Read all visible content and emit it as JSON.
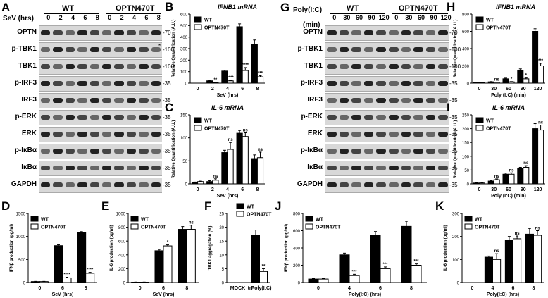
{
  "panels": {
    "A": {
      "label": "A",
      "time_label": "SeV (hrs)",
      "groups": [
        "WT",
        "OPTN470T"
      ],
      "timepoints": [
        "0",
        "2",
        "4",
        "6",
        "8",
        "0",
        "2",
        "4",
        "6",
        "8"
      ],
      "rows": [
        {
          "name": "OPTN",
          "kda": "-70"
        },
        {
          "name": "p-TBK1",
          "kda": "-100"
        },
        {
          "name": "TBK1",
          "kda": "-100"
        },
        {
          "name": "p-IRF3",
          "kda": "-35"
        },
        {
          "name": "IRF3",
          "kda": "-35"
        },
        {
          "name": "p-ERK",
          "kda": "-35"
        },
        {
          "name": "ERK",
          "kda": "-35"
        },
        {
          "name": "p-IκBα",
          "kda": "-35"
        },
        {
          "name": "IκBα",
          "kda": "-35"
        },
        {
          "name": "GAPDH",
          "kda": "-35"
        }
      ],
      "star": "*"
    },
    "G": {
      "label": "G",
      "time_label": "Poly(I:C)",
      "time_unit": "(min)",
      "groups": [
        "WT",
        "OPTN470T"
      ],
      "timepoints": [
        "0",
        "30",
        "60",
        "90",
        "120",
        "0",
        "30",
        "60",
        "90",
        "120"
      ],
      "rows": [
        {
          "name": "OPTN",
          "kda": "-70"
        },
        {
          "name": "p-TBK1",
          "kda": "-100"
        },
        {
          "name": "TBK1",
          "kda": "-100"
        },
        {
          "name": "p-IRF3",
          "kda": "-35"
        },
        {
          "name": "IRF3",
          "kda": "-35"
        },
        {
          "name": "p-ERK",
          "kda": "-35"
        },
        {
          "name": "ERK",
          "kda": "-35"
        },
        {
          "name": "p-IκBα",
          "kda": "-35"
        },
        {
          "name": "IκBα",
          "kda": "-35"
        },
        {
          "name": "GAPDH",
          "kda": "-35"
        }
      ]
    }
  },
  "legend": {
    "wt": "WT",
    "mut": "OPTN470T"
  },
  "chart_data": [
    {
      "id": "B",
      "type": "bar",
      "title": "IFNB1 mRNA",
      "ylabel": "Relative Quantification (A.U.)",
      "xlabel": "SeV (hrs)",
      "categories": [
        "0",
        "2",
        "4",
        "6",
        "8"
      ],
      "ylim": [
        0,
        600
      ],
      "yticks": [
        0,
        100,
        200,
        300,
        400,
        500,
        600
      ],
      "series": [
        {
          "name": "WT",
          "values": [
            0,
            20,
            105,
            490,
            335
          ],
          "err": [
            0,
            5,
            8,
            25,
            40
          ]
        },
        {
          "name": "OPTN470T",
          "values": [
            0,
            5,
            20,
            110,
            55
          ],
          "err": [
            0,
            2,
            4,
            25,
            10
          ]
        }
      ],
      "sig": [
        "",
        "**",
        "****",
        "****",
        "***"
      ]
    },
    {
      "id": "C",
      "type": "bar",
      "title": "IL-6 mRNA",
      "ylabel": "Relative Quantification (A.U.)",
      "xlabel": "SeV (hrs)",
      "categories": [
        "0",
        "2",
        "4",
        "6",
        "8"
      ],
      "ylim": [
        0,
        150
      ],
      "yticks": [
        0,
        50,
        100,
        150
      ],
      "series": [
        {
          "name": "WT",
          "values": [
            3,
            5,
            68,
            110,
            55
          ],
          "err": [
            1,
            2,
            5,
            6,
            8
          ]
        },
        {
          "name": "OPTN470T",
          "values": [
            5,
            8,
            75,
            103,
            57
          ],
          "err": [
            1,
            3,
            15,
            8,
            12
          ]
        }
      ],
      "sig": [
        "",
        "ns",
        "ns",
        "ns",
        "ns"
      ]
    },
    {
      "id": "D",
      "type": "bar",
      "ylabel": "IFNβ production (pg/ml)",
      "xlabel": "SeV (hrs)",
      "categories": [
        "0",
        "6",
        "8"
      ],
      "ylim": [
        0,
        1500
      ],
      "yticks": [
        0,
        500,
        1000,
        1500
      ],
      "series": [
        {
          "name": "WT",
          "values": [
            20,
            800,
            1080
          ],
          "err": [
            5,
            20,
            25
          ]
        },
        {
          "name": "OPTN470T",
          "values": [
            20,
            100,
            200
          ],
          "err": [
            5,
            15,
            20
          ]
        }
      ],
      "sig": [
        "",
        "****",
        "****"
      ]
    },
    {
      "id": "E",
      "type": "bar",
      "ylabel": "IL-6 production (pg/ml)",
      "xlabel": "SeV (hrs)",
      "categories": [
        "0",
        "6",
        "8"
      ],
      "ylim": [
        0,
        1000
      ],
      "yticks": [
        0,
        200,
        400,
        600,
        800,
        1000
      ],
      "series": [
        {
          "name": "WT",
          "values": [
            5,
            460,
            770
          ],
          "err": [
            2,
            20,
            40
          ]
        },
        {
          "name": "OPTN470T",
          "values": [
            5,
            530,
            770
          ],
          "err": [
            2,
            15,
            60
          ]
        }
      ],
      "sig": [
        "",
        "*",
        "ns"
      ]
    },
    {
      "id": "F",
      "type": "bar",
      "ylabel": "TBK1 aggregation (%)",
      "categories": [
        "MOCK",
        "trPoly(I:C)"
      ],
      "ylim": [
        0,
        25
      ],
      "yticks": [
        0,
        5,
        10,
        15,
        20,
        25
      ],
      "series": [
        {
          "name": "WT",
          "values": [
            0,
            17
          ],
          "err": [
            0,
            2
          ]
        },
        {
          "name": "OPTN470T",
          "values": [
            0,
            4
          ],
          "err": [
            0,
            1
          ]
        }
      ],
      "sig": [
        "",
        "**"
      ]
    },
    {
      "id": "H",
      "type": "bar",
      "title": "IFNB1 mRNA",
      "ylabel": "Relative Quantification (A.U.)",
      "xlabel": "Poly (I:C) (min)",
      "categories": [
        "0",
        "30",
        "60",
        "90",
        "120"
      ],
      "ylim": [
        0,
        800
      ],
      "yticks": [
        0,
        200,
        400,
        600,
        800
      ],
      "series": [
        {
          "name": "WT",
          "values": [
            5,
            15,
            50,
            150,
            600
          ],
          "err": [
            1,
            3,
            8,
            15,
            30
          ]
        },
        {
          "name": "OPTN470T",
          "values": [
            5,
            10,
            15,
            50,
            200
          ],
          "err": [
            1,
            2,
            3,
            10,
            30
          ]
        }
      ],
      "sig": [
        "",
        "ns",
        "*",
        "*",
        "***"
      ]
    },
    {
      "id": "I",
      "type": "bar",
      "title": "IL-6 mRNA",
      "ylabel": "Relative Quantification (A.U.)",
      "xlabel": "Poly (I:C) (min)",
      "categories": [
        "0",
        "30",
        "60",
        "90",
        "120"
      ],
      "ylim": [
        0,
        250
      ],
      "yticks": [
        0,
        50,
        100,
        150,
        200,
        250
      ],
      "series": [
        {
          "name": "WT",
          "values": [
            3,
            10,
            35,
            55,
            200
          ],
          "err": [
            1,
            2,
            4,
            5,
            18
          ]
        },
        {
          "name": "OPTN470T",
          "values": [
            3,
            15,
            35,
            60,
            195
          ],
          "err": [
            1,
            3,
            5,
            6,
            18
          ]
        }
      ],
      "sig": [
        "",
        "ns",
        "ns",
        "ns",
        "ns"
      ]
    },
    {
      "id": "J",
      "type": "bar",
      "ylabel": "IFNβ production (pg/ml)",
      "xlabel": "Poly(I:C) (hrs)",
      "categories": [
        "0",
        "4",
        "6",
        "8"
      ],
      "ylim": [
        0,
        800
      ],
      "yticks": [
        0,
        200,
        400,
        600,
        800
      ],
      "series": [
        {
          "name": "WT",
          "values": [
            40,
            320,
            550,
            650
          ],
          "err": [
            5,
            20,
            40,
            60
          ]
        },
        {
          "name": "OPTN470T",
          "values": [
            40,
            80,
            160,
            200
          ],
          "err": [
            5,
            15,
            20,
            15
          ]
        }
      ],
      "sig": [
        "",
        "***",
        "***",
        "***"
      ]
    },
    {
      "id": "K",
      "type": "bar",
      "ylabel": "IL-6 production (pg/ml)",
      "xlabel": "Poly(I:C) (hrs)",
      "categories": [
        "0",
        "4",
        "6",
        "8"
      ],
      "ylim": [
        0,
        300
      ],
      "yticks": [
        0,
        100,
        200,
        300
      ],
      "series": [
        {
          "name": "WT",
          "values": [
            0,
            110,
            185,
            210
          ],
          "err": [
            0,
            5,
            15,
            25
          ]
        },
        {
          "name": "OPTN470T",
          "values": [
            0,
            100,
            190,
            205
          ],
          "err": [
            0,
            25,
            12,
            20
          ]
        }
      ],
      "sig": [
        "",
        "ns",
        "ns",
        "ns"
      ]
    }
  ]
}
